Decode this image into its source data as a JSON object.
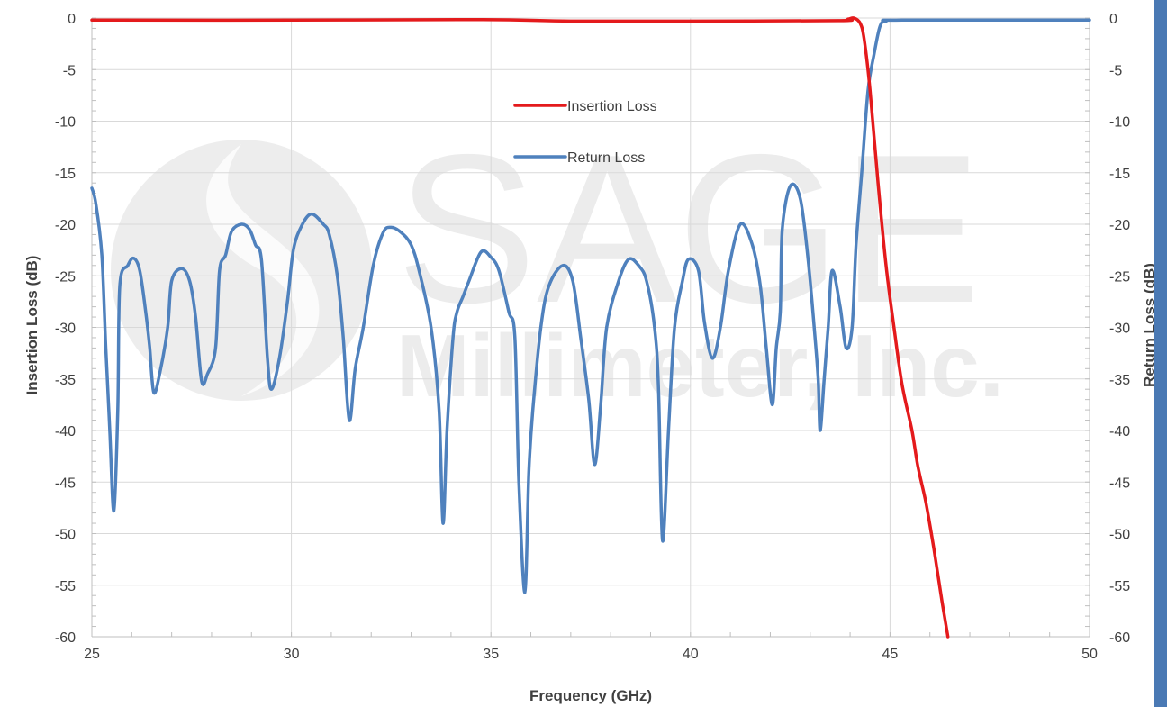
{
  "chart_data": {
    "type": "line",
    "xlabel": "Frequency (GHz)",
    "ylabel_left": "Insertion Loss (dB)",
    "ylabel_right": "Return Loss (dB)",
    "xlim": [
      25,
      50
    ],
    "ylim": [
      -60,
      0
    ],
    "x_ticks": [
      "25",
      "30",
      "35",
      "40",
      "45",
      "50"
    ],
    "x_tick_values": [
      25,
      30,
      35,
      40,
      45,
      50
    ],
    "y_ticks": [
      "0",
      "-5",
      "-10",
      "-15",
      "-20",
      "-25",
      "-30",
      "-35",
      "-40",
      "-45",
      "-50",
      "-55",
      "-60"
    ],
    "y_tick_values": [
      0,
      -5,
      -10,
      -15,
      -20,
      -25,
      -30,
      -35,
      -40,
      -45,
      -50,
      -55,
      -60
    ],
    "grid": true,
    "legend_position": "center-top",
    "series": [
      {
        "name": "Insertion Loss",
        "color": "#e41a1c",
        "points": [
          [
            25.0,
            -0.2
          ],
          [
            30.0,
            -0.2
          ],
          [
            34.8,
            -0.15
          ],
          [
            37.0,
            -0.3
          ],
          [
            40.0,
            -0.3
          ],
          [
            43.7,
            -0.25
          ],
          [
            43.95,
            -0.1
          ],
          [
            44.1,
            0.0
          ],
          [
            44.25,
            -0.5
          ],
          [
            44.35,
            -2.0
          ],
          [
            44.5,
            -7.0
          ],
          [
            44.7,
            -16.0
          ],
          [
            44.9,
            -24.0
          ],
          [
            45.1,
            -30.0
          ],
          [
            45.3,
            -35.5
          ],
          [
            45.55,
            -40.0
          ],
          [
            45.7,
            -43.5
          ],
          [
            45.9,
            -47.0
          ],
          [
            46.1,
            -51.5
          ],
          [
            46.3,
            -56.5
          ],
          [
            46.45,
            -60.0
          ]
        ]
      },
      {
        "name": "Return Loss",
        "color": "#4f81bd",
        "points": [
          [
            25.0,
            -16.5
          ],
          [
            25.1,
            -18.0
          ],
          [
            25.25,
            -23.0
          ],
          [
            25.35,
            -32.0
          ],
          [
            25.45,
            -40.0
          ],
          [
            25.55,
            -47.8
          ],
          [
            25.65,
            -38.0
          ],
          [
            25.7,
            -26.0
          ],
          [
            25.9,
            -24.0
          ],
          [
            26.05,
            -23.3
          ],
          [
            26.2,
            -24.5
          ],
          [
            26.35,
            -28.5
          ],
          [
            26.45,
            -32.0
          ],
          [
            26.55,
            -36.3
          ],
          [
            26.7,
            -34.5
          ],
          [
            26.9,
            -30.0
          ],
          [
            27.0,
            -25.5
          ],
          [
            27.25,
            -24.3
          ],
          [
            27.45,
            -25.5
          ],
          [
            27.6,
            -29.0
          ],
          [
            27.75,
            -35.2
          ],
          [
            27.9,
            -34.5
          ],
          [
            28.1,
            -32.0
          ],
          [
            28.2,
            -24.5
          ],
          [
            28.35,
            -23.0
          ],
          [
            28.5,
            -20.7
          ],
          [
            28.75,
            -20.0
          ],
          [
            28.95,
            -20.5
          ],
          [
            29.1,
            -22.0
          ],
          [
            29.25,
            -23.5
          ],
          [
            29.4,
            -33.0
          ],
          [
            29.5,
            -36.0
          ],
          [
            29.7,
            -33.0
          ],
          [
            29.9,
            -27.5
          ],
          [
            30.05,
            -22.5
          ],
          [
            30.25,
            -20.2
          ],
          [
            30.5,
            -19.0
          ],
          [
            30.8,
            -20.0
          ],
          [
            30.95,
            -21.0
          ],
          [
            31.15,
            -25.0
          ],
          [
            31.3,
            -31.0
          ],
          [
            31.45,
            -39.0
          ],
          [
            31.6,
            -34.0
          ],
          [
            31.8,
            -30.0
          ],
          [
            32.05,
            -24.0
          ],
          [
            32.3,
            -20.8
          ],
          [
            32.5,
            -20.3
          ],
          [
            32.75,
            -20.8
          ],
          [
            33.0,
            -22.0
          ],
          [
            33.2,
            -24.5
          ],
          [
            33.5,
            -30.0
          ],
          [
            33.7,
            -38.0
          ],
          [
            33.8,
            -49.0
          ],
          [
            33.9,
            -40.0
          ],
          [
            34.05,
            -31.0
          ],
          [
            34.15,
            -28.5
          ],
          [
            34.3,
            -27.0
          ],
          [
            34.45,
            -25.5
          ],
          [
            34.75,
            -22.7
          ],
          [
            35.0,
            -23.2
          ],
          [
            35.2,
            -24.5
          ],
          [
            35.45,
            -28.5
          ],
          [
            35.6,
            -31.0
          ],
          [
            35.7,
            -45.0
          ],
          [
            35.85,
            -55.7
          ],
          [
            35.95,
            -44.0
          ],
          [
            36.05,
            -38.0
          ],
          [
            36.25,
            -30.0
          ],
          [
            36.45,
            -26.0
          ],
          [
            36.8,
            -24.0
          ],
          [
            37.05,
            -25.5
          ],
          [
            37.25,
            -31.0
          ],
          [
            37.45,
            -37.0
          ],
          [
            37.6,
            -43.3
          ],
          [
            37.75,
            -37.5
          ],
          [
            37.9,
            -30.0
          ],
          [
            38.2,
            -25.5
          ],
          [
            38.45,
            -23.4
          ],
          [
            38.7,
            -24.0
          ],
          [
            38.9,
            -25.5
          ],
          [
            39.1,
            -30.0
          ],
          [
            39.2,
            -36.0
          ],
          [
            39.3,
            -50.7
          ],
          [
            39.45,
            -40.0
          ],
          [
            39.6,
            -30.0
          ],
          [
            39.8,
            -25.5
          ],
          [
            39.95,
            -23.4
          ],
          [
            40.2,
            -24.5
          ],
          [
            40.35,
            -29.5
          ],
          [
            40.55,
            -33.0
          ],
          [
            40.75,
            -30.0
          ],
          [
            40.95,
            -24.5
          ],
          [
            41.25,
            -20.0
          ],
          [
            41.55,
            -22.0
          ],
          [
            41.75,
            -26.0
          ],
          [
            41.9,
            -32.0
          ],
          [
            42.05,
            -37.5
          ],
          [
            42.15,
            -32.0
          ],
          [
            42.25,
            -28.5
          ],
          [
            42.3,
            -20.5
          ],
          [
            42.5,
            -16.3
          ],
          [
            42.75,
            -17.5
          ],
          [
            42.95,
            -23.5
          ],
          [
            43.1,
            -30.0
          ],
          [
            43.2,
            -35.0
          ],
          [
            43.25,
            -40.0
          ],
          [
            43.35,
            -35.0
          ],
          [
            43.45,
            -30.0
          ],
          [
            43.55,
            -24.5
          ],
          [
            43.75,
            -28.0
          ],
          [
            43.9,
            -32.0
          ],
          [
            44.05,
            -30.0
          ],
          [
            44.15,
            -22.0
          ],
          [
            44.3,
            -14.5
          ],
          [
            44.45,
            -7.0
          ],
          [
            44.6,
            -3.5
          ],
          [
            44.75,
            -0.8
          ],
          [
            44.9,
            -0.3
          ],
          [
            45.3,
            -0.2
          ],
          [
            50.0,
            -0.2
          ]
        ]
      }
    ]
  },
  "watermark": {
    "line1": "SAGE",
    "line2": "Millimeter, Inc."
  },
  "colors": {
    "grid": "#d9d9d9",
    "axis": "#bfbfbf",
    "text": "#404040",
    "edge_bar": "#4a79b4"
  }
}
